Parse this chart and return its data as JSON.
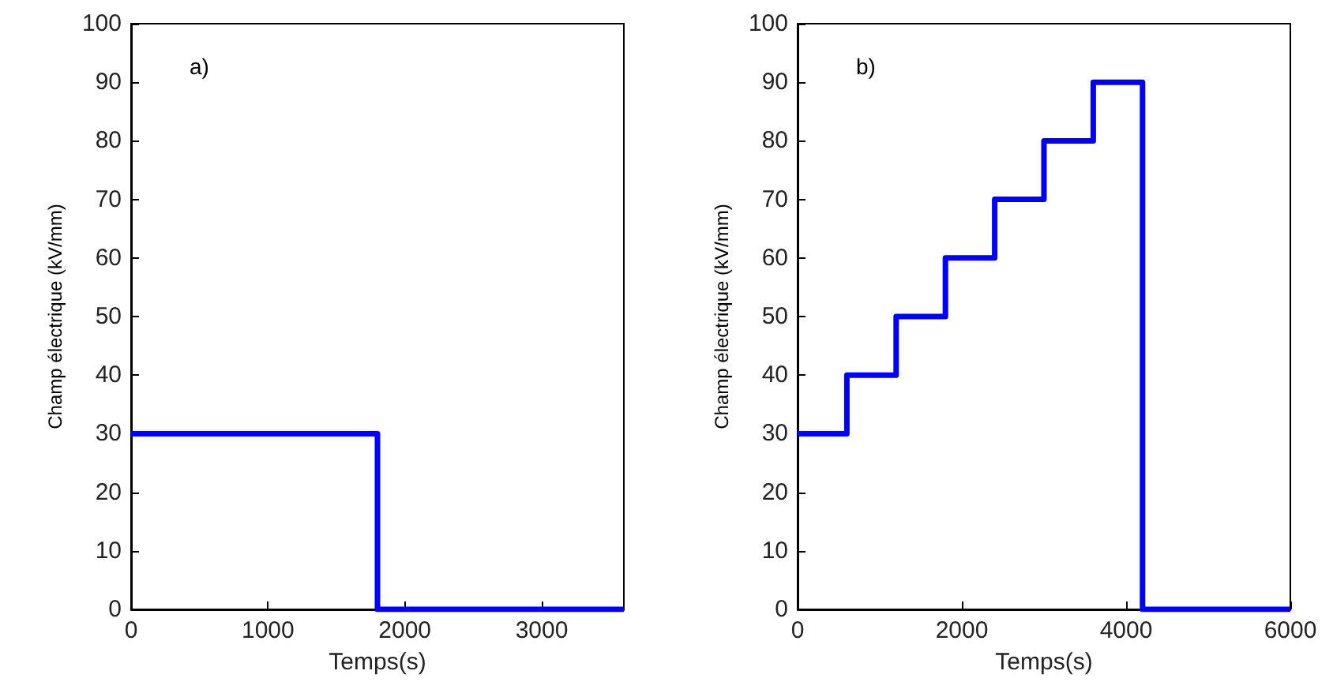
{
  "chart_data": [
    {
      "type": "step",
      "xlabel": "Temps(s)",
      "ylabel": "Champ électrique (kV/mm)",
      "annotations": [
        "a)"
      ],
      "x": [
        0,
        1800,
        3600
      ],
      "series": [
        {
          "color": "#0000ff",
          "values": [
            30,
            0,
            0
          ]
        }
      ],
      "xlim": [
        0,
        3600
      ],
      "xticks": [
        0,
        1000,
        2000,
        3000
      ],
      "ylim": [
        0,
        100
      ],
      "yticks": [
        0,
        10,
        20,
        30,
        40,
        50,
        60,
        70,
        80,
        90,
        100
      ],
      "grid": false
    },
    {
      "type": "step",
      "xlabel": "Temps(s)",
      "ylabel": "Champ électrique (kV/mm)",
      "annotations": [
        "b)"
      ],
      "x": [
        0,
        600,
        1200,
        1800,
        2400,
        3000,
        3600,
        4200,
        6000
      ],
      "series": [
        {
          "color": "#0000ff",
          "values": [
            30,
            40,
            50,
            60,
            70,
            80,
            90,
            0,
            0
          ]
        }
      ],
      "xlim": [
        0,
        6000
      ],
      "xticks": [
        0,
        2000,
        4000,
        6000
      ],
      "ylim": [
        0,
        100
      ],
      "yticks": [
        0,
        10,
        20,
        30,
        40,
        50,
        60,
        70,
        80,
        90,
        100
      ],
      "grid": false
    }
  ]
}
